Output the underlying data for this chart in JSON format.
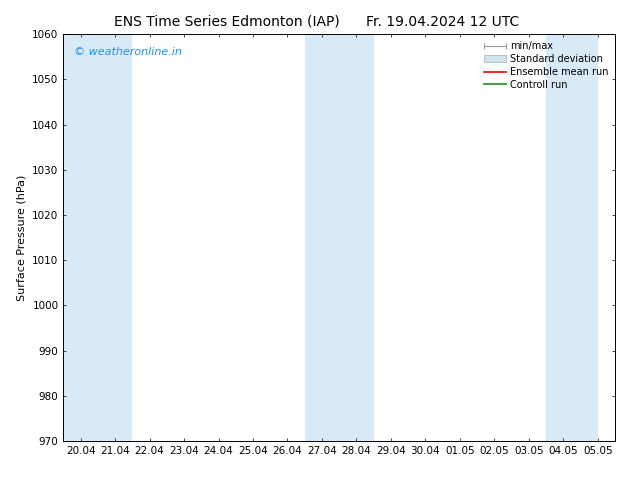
{
  "title_left": "ENS Time Series Edmonton (IAP)",
  "title_right": "Fr. 19.04.2024 12 UTC",
  "ylabel": "Surface Pressure (hPa)",
  "ylim": [
    970,
    1060
  ],
  "yticks": [
    970,
    980,
    990,
    1000,
    1010,
    1020,
    1030,
    1040,
    1050,
    1060
  ],
  "xtick_labels": [
    "20.04",
    "21.04",
    "22.04",
    "23.04",
    "24.04",
    "25.04",
    "26.04",
    "27.04",
    "28.04",
    "29.04",
    "30.04",
    "01.05",
    "02.05",
    "03.05",
    "04.05",
    "05.05"
  ],
  "background_color": "#ffffff",
  "plot_bg_color": "#ffffff",
  "shaded_band_color": "#d8eaf7",
  "shaded_ranges": [
    [
      0,
      2
    ],
    [
      7,
      9
    ],
    [
      14,
      15.5
    ]
  ],
  "watermark": "© weatheronline.in",
  "watermark_color": "#1e90ff",
  "title_fontsize": 10,
  "axis_label_fontsize": 8,
  "tick_fontsize": 7.5,
  "watermark_fontsize": 8
}
